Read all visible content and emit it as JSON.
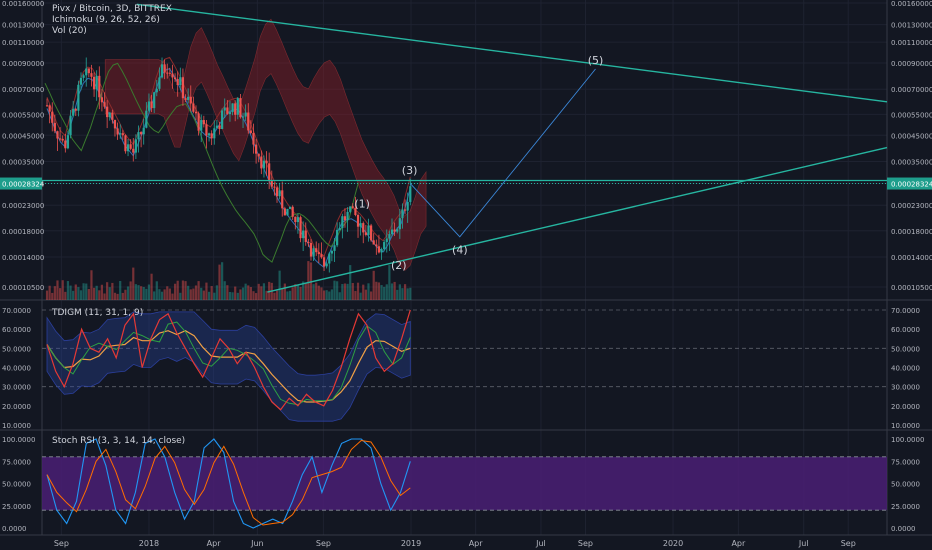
{
  "header": {
    "title": "Pivx / Bitcoin, 3D, BITTREX",
    "indicator1": "Ichimoku (9, 26, 52, 26)",
    "indicator2": "Vol (20)"
  },
  "panes": {
    "tdi_label": "TDIGM (11, 31, 1, 9)",
    "stoch_label": "Stoch RSI (3, 3, 14, 14, close)"
  },
  "colors": {
    "background": "#131722",
    "grid": "#1e2230",
    "up_candle": "#26a69a",
    "down_candle": "#ef5350",
    "trendline": "#26b5a0",
    "wave_line": "#3b87d8",
    "price_tag": "#1e9e8c",
    "stoch_band": "#4a1f74"
  },
  "chart_data": [
    {
      "type": "line",
      "title": "Pivx / Bitcoin, 3D, BITTREX",
      "y_scale": "log",
      "x_tick_labels": [
        "Sep",
        "2018",
        "Apr",
        "Jun",
        "Sep",
        "2019",
        "Apr",
        "Jul",
        "Sep",
        "2020",
        "Apr",
        "Jul",
        "Sep"
      ],
      "y_tick_labels": [
        "0.00010500",
        "0.00014000",
        "0.00018000",
        "0.00023000",
        "0.00028324",
        "0.00035000",
        "0.00045000",
        "0.00055000",
        "0.00070000",
        "0.00090000",
        "0.00110000",
        "0.00130000",
        "0.00160000"
      ],
      "last_price": "0.00028324",
      "close_series": [
        0.0006,
        0.00048,
        0.0004,
        0.00055,
        0.00075,
        0.00082,
        0.0007,
        0.00058,
        0.0005,
        0.00042,
        0.00038,
        0.00047,
        0.0006,
        0.0008,
        0.0009,
        0.00078,
        0.00065,
        0.00055,
        0.00047,
        0.00045,
        0.00052,
        0.00058,
        0.0006,
        0.00052,
        0.00042,
        0.00034,
        0.00028,
        0.00024,
        0.00021,
        0.00019,
        0.00017,
        0.00014,
        0.00013,
        0.00016,
        0.0002,
        0.00021,
        0.0002,
        0.00018,
        0.00016,
        0.00015,
        0.00018,
        0.0002,
        0.00028
      ],
      "wave_labels": [
        {
          "label": "(1)",
          "date": "2018-10-25",
          "price": 0.000225
        },
        {
          "label": "(2)",
          "date": "2018-12-15",
          "price": 0.000125
        },
        {
          "label": "(3)",
          "date": "2018-12-30",
          "price": 0.00031
        },
        {
          "label": "(4)",
          "date": "2019-03-10",
          "price": 0.000145
        },
        {
          "label": "(5)",
          "date": "2019-09-15",
          "price": 0.00089
        }
      ],
      "projection_path": [
        {
          "date": "2018-12-31",
          "price": 0.000283
        },
        {
          "date": "2019-03-10",
          "price": 0.00017
        },
        {
          "date": "2019-09-15",
          "price": 0.00085
        }
      ]
    },
    {
      "type": "line",
      "title": "TDIGM (11, 31, 1, 9)",
      "ylim": [
        10,
        70
      ],
      "y_tick_labels": [
        "70.0000",
        "60.0000",
        "50.0000",
        "40.0000",
        "30.0000",
        "20.0000",
        "10.0000"
      ],
      "levels": [
        70,
        50,
        30
      ],
      "rsi_series": [
        52,
        38,
        30,
        42,
        60,
        50,
        48,
        55,
        45,
        62,
        68,
        40,
        55,
        65,
        68,
        58,
        50,
        42,
        35,
        45,
        55,
        50,
        42,
        48,
        40,
        30,
        22,
        18,
        24,
        20,
        26,
        22,
        20,
        28,
        40,
        55,
        68,
        62,
        45,
        38,
        42,
        55,
        70
      ]
    },
    {
      "type": "line",
      "title": "Stoch RSI (3, 3, 14, 14, close)",
      "ylim": [
        0,
        100
      ],
      "y_tick_labels": [
        "100.0000",
        "75.0000",
        "50.0000",
        "25.0000",
        "0.0000"
      ],
      "band": [
        20,
        80
      ],
      "k_series": [
        60,
        20,
        5,
        30,
        95,
        100,
        70,
        20,
        5,
        40,
        95,
        100,
        80,
        40,
        10,
        30,
        90,
        100,
        85,
        30,
        5,
        0,
        5,
        10,
        5,
        30,
        60,
        80,
        40,
        70,
        95,
        100,
        100,
        90,
        50,
        20,
        40,
        75
      ]
    }
  ]
}
